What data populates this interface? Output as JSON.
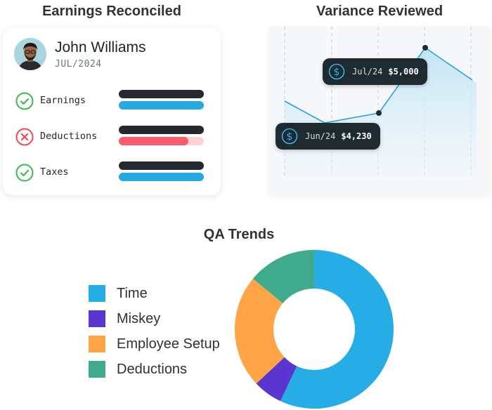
{
  "earnings_card": {
    "title": "Earnings Reconciled",
    "person_name": "John Williams",
    "period": "JUL/2024",
    "rows": [
      {
        "label": "Earnings",
        "status": "ok",
        "status_icon": "check-circle-icon",
        "fill": 1.0,
        "color": "#26a8e0"
      },
      {
        "label": "Deductions",
        "status": "error",
        "status_icon": "x-circle-icon",
        "fill": 0.82,
        "color": "#fb5b6b"
      },
      {
        "label": "Taxes",
        "status": "ok",
        "status_icon": "check-circle-icon",
        "fill": 1.0,
        "color": "#26a8e0"
      }
    ],
    "colors": {
      "ok": "#3fb950",
      "error": "#f0485a",
      "dark_bar": "#23292e"
    }
  },
  "variance_card": {
    "title": "Variance Reviewed",
    "tooltips": [
      {
        "period": "Jul/24",
        "value": "$5,000",
        "icon": "dollar-circle-icon"
      },
      {
        "period": "Jun/24",
        "value": "$4,230",
        "icon": "dollar-circle-icon"
      }
    ],
    "line_color": "#2aa4d8"
  },
  "qa_trends": {
    "title": "QA Trends",
    "legend": [
      {
        "label": "Time",
        "color": "#26ade5"
      },
      {
        "label": "Miskey",
        "color": "#5b35cf"
      },
      {
        "label": "Employee Setup",
        "color": "#ffa446"
      },
      {
        "label": "Deductions",
        "color": "#3faa8c"
      }
    ]
  },
  "chart_data": {
    "type": "pie",
    "title": "QA Trends",
    "categories": [
      "Time",
      "Miskey",
      "Employee Setup",
      "Deductions"
    ],
    "values": [
      57,
      6,
      23,
      14
    ],
    "colors": [
      "#26ade5",
      "#5b35cf",
      "#ffa446",
      "#3faa8c"
    ]
  }
}
